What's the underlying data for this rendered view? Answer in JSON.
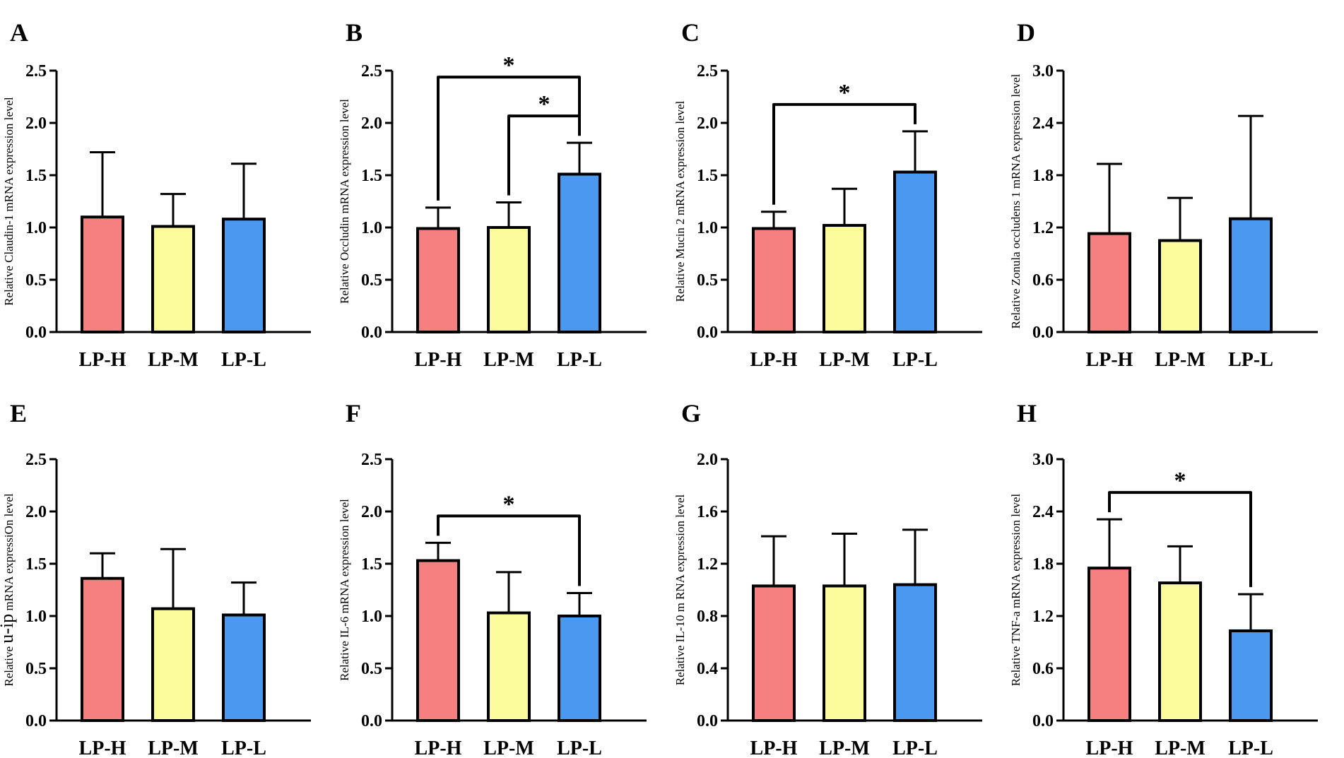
{
  "figure": {
    "colors": {
      "LP-H": "#f67f7f",
      "LP-M": "#fbfb9c",
      "LP-L": "#4a98ef",
      "stroke": "#000000"
    }
  },
  "chart_data": [
    {
      "panel": "A",
      "type": "bar",
      "categories": [
        "LP-H",
        "LP-M",
        "LP-L"
      ],
      "values": [
        1.1,
        1.01,
        1.08
      ],
      "errors": [
        0.62,
        0.31,
        0.53
      ],
      "ylabel": "Relative Claudin-1 mRNA expression level",
      "ylim": [
        0,
        2.5
      ],
      "yticks": [
        "0.0",
        "0.5",
        "1.0",
        "1.5",
        "2.0",
        "2.5"
      ],
      "significance": []
    },
    {
      "panel": "B",
      "type": "bar",
      "categories": [
        "LP-H",
        "LP-M",
        "LP-L"
      ],
      "values": [
        0.99,
        1.0,
        1.51
      ],
      "errors": [
        0.2,
        0.24,
        0.3
      ],
      "ylabel": "Relative Occludin mRNA expression level",
      "ylim": [
        0,
        2.5
      ],
      "yticks": [
        "0.0",
        "0.5",
        "1.0",
        "1.5",
        "2.0",
        "2.5"
      ],
      "significance": [
        {
          "from": 0,
          "to": 2,
          "label": "*"
        },
        {
          "from": 1,
          "to": 2,
          "label": "*"
        }
      ]
    },
    {
      "panel": "C",
      "type": "bar",
      "categories": [
        "LP-H",
        "LP-M",
        "LP-L"
      ],
      "values": [
        0.99,
        1.02,
        1.53
      ],
      "errors": [
        0.16,
        0.35,
        0.39
      ],
      "ylabel": "Relative Mucin 2 mRNA expression level",
      "ylim": [
        0,
        2.5
      ],
      "yticks": [
        "0.0",
        "0.5",
        "1.0",
        "1.5",
        "2.0",
        "2.5"
      ],
      "significance": [
        {
          "from": 0,
          "to": 2,
          "label": "*"
        }
      ]
    },
    {
      "panel": "D",
      "type": "bar",
      "categories": [
        "LP-H",
        "LP-M",
        "LP-L"
      ],
      "values": [
        1.13,
        1.05,
        1.3
      ],
      "errors": [
        0.8,
        0.49,
        1.18
      ],
      "ylabel": "Relative Zonula occludens 1 mRNA expression level",
      "ylim": [
        0,
        3.0
      ],
      "yticks": [
        "0.0",
        "0.6",
        "1.2",
        "1.8",
        "2.4",
        "3.0"
      ],
      "significance": []
    },
    {
      "panel": "E",
      "type": "bar",
      "categories": [
        "LP-H",
        "LP-M",
        "LP-L"
      ],
      "values": [
        1.36,
        1.07,
        1.01
      ],
      "errors": [
        0.24,
        0.57,
        0.31
      ],
      "ylabel_prefix": "Relative ",
      "ylabel_mid": "u-ip",
      "ylabel_suffix": " mRNA expressiOn level",
      "ylim": [
        0,
        2.5
      ],
      "yticks": [
        "0.0",
        "0.5",
        "1.0",
        "1.5",
        "2.0",
        "2.5"
      ],
      "significance": []
    },
    {
      "panel": "F",
      "type": "bar",
      "categories": [
        "LP-H",
        "LP-M",
        "LP-L"
      ],
      "values": [
        1.53,
        1.03,
        1.0
      ],
      "errors": [
        0.17,
        0.39,
        0.22
      ],
      "ylabel": "Relative IL-6 mRNA expression level",
      "ylim": [
        0,
        2.5
      ],
      "yticks": [
        "0.0",
        "0.5",
        "1.0",
        "1.5",
        "2.0",
        "2.5"
      ],
      "significance": [
        {
          "from": 0,
          "to": 2,
          "label": "*"
        }
      ]
    },
    {
      "panel": "G",
      "type": "bar",
      "categories": [
        "LP-H",
        "LP-M",
        "LP-L"
      ],
      "values": [
        1.03,
        1.03,
        1.04
      ],
      "errors": [
        0.38,
        0.4,
        0.42
      ],
      "ylabel": "Relative IL-10 m RNA expression level",
      "ylim": [
        0,
        2.0
      ],
      "yticks": [
        "0.0",
        "0.4",
        "0.8",
        "1.2",
        "1.6",
        "2.0"
      ],
      "significance": []
    },
    {
      "panel": "H",
      "type": "bar",
      "categories": [
        "LP-H",
        "LP-M",
        "LP-L"
      ],
      "values": [
        1.75,
        1.58,
        1.03
      ],
      "errors": [
        0.56,
        0.42,
        0.42
      ],
      "ylabel": "Relative TNF-a mRNA expression level",
      "ylim": [
        0,
        3.0
      ],
      "yticks": [
        "0.0",
        "0.6",
        "1.2",
        "1.8",
        "2.4",
        "3.0"
      ],
      "significance": [
        {
          "from": 0,
          "to": 2,
          "label": "*"
        }
      ]
    }
  ]
}
